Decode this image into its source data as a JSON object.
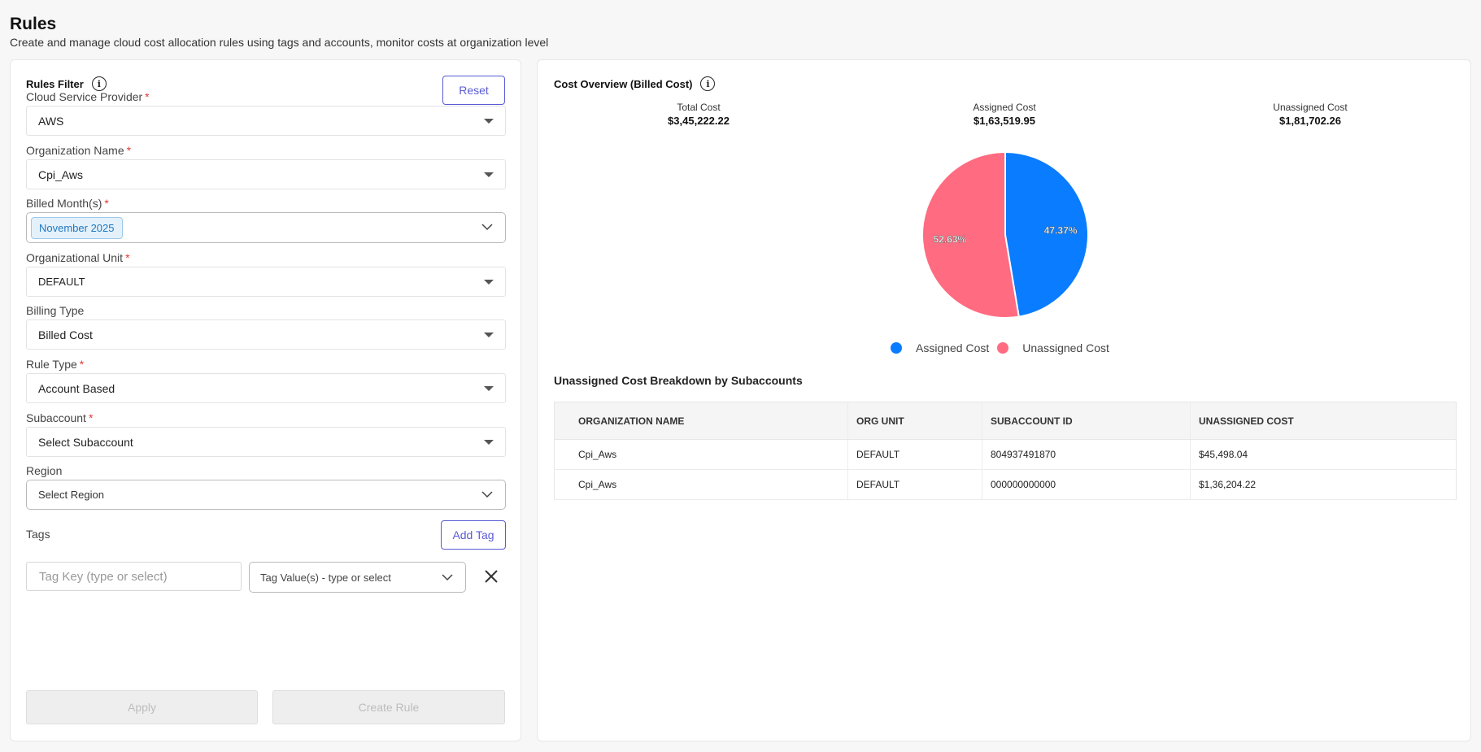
{
  "page": {
    "title": "Rules",
    "subtitle": "Create and manage cloud cost allocation rules using tags and accounts, monitor costs at organization level"
  },
  "filter": {
    "title": "Rules Filter",
    "reset_label": "Reset",
    "fields": {
      "csp": {
        "label": "Cloud Service Provider",
        "value": "AWS"
      },
      "org_name": {
        "label": "Organization Name",
        "value": "Cpi_Aws"
      },
      "billed_months": {
        "label": "Billed Month(s)",
        "chip": "November 2025"
      },
      "org_unit": {
        "label": "Organizational Unit",
        "value": "DEFAULT"
      },
      "billing_type": {
        "label": "Billing Type",
        "value": "Billed Cost"
      },
      "rule_type": {
        "label": "Rule Type",
        "value": "Account Based"
      },
      "subaccount": {
        "label": "Subaccount",
        "value": "Select Subaccount"
      },
      "region": {
        "label": "Region",
        "placeholder": "Select Region"
      }
    },
    "required_mark": "*",
    "tags": {
      "label": "Tags",
      "add_label": "Add Tag",
      "key_placeholder": "Tag Key (type or select)",
      "value_placeholder": "Tag Value(s) - type or select"
    },
    "apply_label": "Apply",
    "create_label": "Create Rule"
  },
  "overview": {
    "title": "Cost Overview (Billed Cost)",
    "stats": [
      {
        "label": "Total Cost",
        "value": "$3,45,222.22"
      },
      {
        "label": "Assigned Cost",
        "value": "$1,63,519.95"
      },
      {
        "label": "Unassigned Cost",
        "value": "$1,81,702.26"
      }
    ]
  },
  "chart_data": {
    "type": "pie",
    "slices": [
      {
        "name": "Assigned Cost",
        "value": 47.37,
        "label": "47.37%",
        "color": "#0a7cff"
      },
      {
        "name": "Unassigned Cost",
        "value": 52.63,
        "label": "52.63%",
        "color": "#ff6b81"
      }
    ],
    "legend_position": "bottom"
  },
  "breakdown": {
    "title": "Unassigned Cost Breakdown by Subaccounts",
    "columns": [
      "ORGANIZATION NAME",
      "ORG UNIT",
      "SUBACCOUNT ID",
      "UNASSIGNED COST"
    ],
    "rows": [
      [
        "Cpi_Aws",
        "DEFAULT",
        "804937491870",
        "$45,498.04"
      ],
      [
        "Cpi_Aws",
        "DEFAULT",
        "000000000000",
        "$1,36,204.22"
      ]
    ]
  }
}
